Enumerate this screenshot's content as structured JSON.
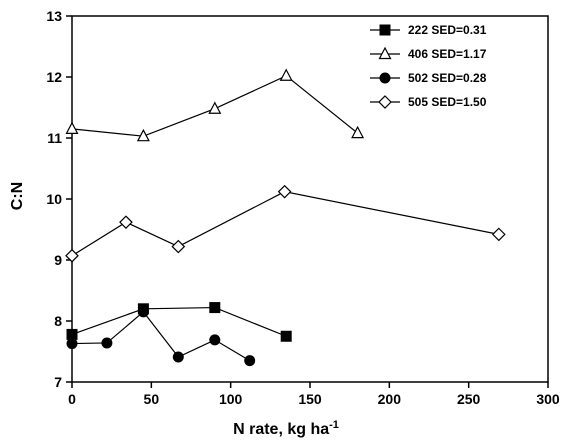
{
  "chart_data": {
    "type": "line",
    "title": "",
    "xlabel": "N rate, kg ha",
    "xlabel_superscript": "-1",
    "ylabel": "C:N",
    "xlim": [
      0,
      300
    ],
    "ylim": [
      7,
      13
    ],
    "xticks": [
      0,
      50,
      100,
      150,
      200,
      250,
      300
    ],
    "yticks": [
      7,
      8,
      9,
      10,
      11,
      12,
      13
    ],
    "grid": false,
    "legend_position": "top-right",
    "series": [
      {
        "name": "222 SED=0.31",
        "marker": "filled-square",
        "x": [
          0,
          45,
          90,
          135
        ],
        "y": [
          7.78,
          8.2,
          8.22,
          7.75
        ]
      },
      {
        "name": "406 SED=1.17",
        "marker": "open-triangle",
        "x": [
          0,
          45,
          90,
          135,
          180
        ],
        "y": [
          11.15,
          11.03,
          11.48,
          12.02,
          11.08
        ]
      },
      {
        "name": "502 SED=0.28",
        "marker": "filled-circle",
        "x": [
          0,
          22,
          45,
          67,
          90,
          112
        ],
        "y": [
          7.63,
          7.64,
          8.15,
          7.41,
          7.69,
          7.35
        ]
      },
      {
        "name": "505 SED=1.50",
        "marker": "open-diamond",
        "x": [
          0,
          34,
          67,
          134,
          269
        ],
        "y": [
          9.07,
          9.62,
          9.22,
          10.12,
          9.42
        ]
      }
    ]
  }
}
